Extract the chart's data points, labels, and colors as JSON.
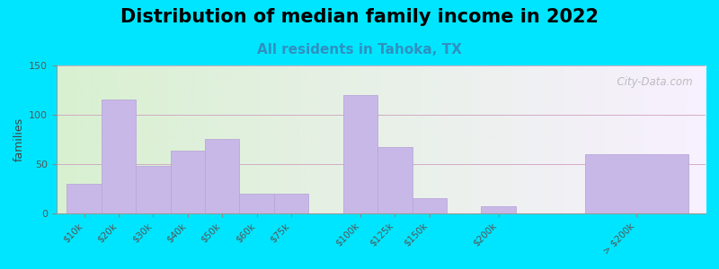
{
  "title": "Distribution of median family income in 2022",
  "subtitle": "All residents in Tahoka, TX",
  "ylabel": "families",
  "categories": [
    "$10k",
    "$20k",
    "$30k",
    "$40k",
    "$50k",
    "$60k",
    "$75k",
    "$100k",
    "$125k",
    "$150k",
    "$200k",
    "> $200k"
  ],
  "values": [
    30,
    115,
    48,
    63,
    75,
    20,
    20,
    120,
    67,
    15,
    7,
    60
  ],
  "bar_positions": [
    0,
    1,
    2,
    3,
    4,
    5,
    6,
    8,
    9,
    10,
    12,
    15
  ],
  "bar_widths": [
    1,
    1,
    1,
    1,
    1,
    1,
    1,
    1,
    1,
    1,
    1,
    3
  ],
  "ylim": [
    0,
    150
  ],
  "yticks": [
    0,
    50,
    100,
    150
  ],
  "bar_color": "#c8b8e8",
  "bar_edge_color": "#b8a8d8",
  "background_outer": "#00e5ff",
  "background_plot_left": "#d8f0d0",
  "background_plot_right": "#f8f0ff",
  "title_fontsize": 15,
  "subtitle_fontsize": 11,
  "subtitle_color": "#3090c0",
  "watermark": "  City-Data.com"
}
